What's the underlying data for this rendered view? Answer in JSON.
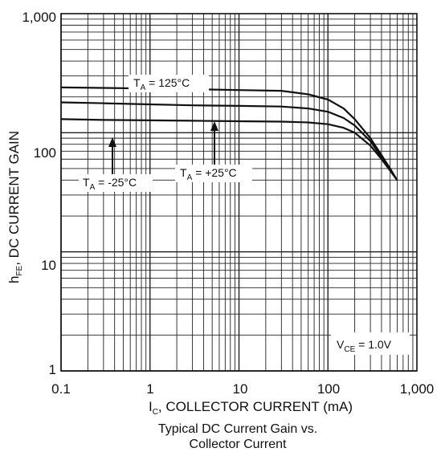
{
  "chart_data": {
    "type": "line",
    "xscale": "log",
    "yscale": "log",
    "xlim": [
      0.1,
      1000
    ],
    "ylim": [
      1,
      1000
    ],
    "grid": true,
    "x_ticks": [
      "0.1",
      "1",
      "10",
      "100",
      "1,000"
    ],
    "y_ticks": [
      "1",
      "10",
      "100",
      "1,000"
    ],
    "xlabel": {
      "main": "I",
      "sub": "C",
      "rest": ", COLLECTOR CURRENT (mA)"
    },
    "ylabel": {
      "main": "h",
      "sub": "FE",
      "rest": ",  DC CURRENT GAIN"
    },
    "caption": [
      "Typical DC Current Gain vs.",
      "Collector Current"
    ],
    "condition": {
      "main": "V",
      "sub": "CE",
      "rest": " = 1.0V"
    },
    "series": [
      {
        "name": "TA = 125°C",
        "label": {
          "main": "T",
          "sub": "A",
          "rest": " = 125°C"
        },
        "x": [
          0.1,
          0.3,
          1,
          3,
          10,
          30,
          60,
          100,
          150,
          200,
          300,
          400,
          500,
          600
        ],
        "y": [
          240,
          238,
          235,
          232,
          228,
          225,
          210,
          190,
          160,
          130,
          90,
          65,
          50,
          40
        ]
      },
      {
        "name": "TA = +25°C",
        "label": {
          "main": "T",
          "sub": "A",
          "rest": " = +25°C"
        },
        "x": [
          0.1,
          0.3,
          1,
          3,
          10,
          30,
          60,
          100,
          150,
          200,
          300,
          400,
          500,
          600
        ],
        "y": [
          180,
          177,
          173,
          170,
          168,
          166,
          160,
          150,
          133,
          115,
          85,
          62,
          49,
          40
        ]
      },
      {
        "name": "TA = -25°C",
        "label": {
          "main": "T",
          "sub": "A",
          "rest": " = -25°C"
        },
        "x": [
          0.1,
          0.3,
          1,
          3,
          10,
          30,
          60,
          100,
          150,
          200,
          300,
          400,
          500,
          600
        ],
        "y": [
          130,
          128,
          127,
          126,
          125,
          124,
          122,
          118,
          110,
          100,
          78,
          60,
          48,
          40
        ]
      }
    ]
  }
}
